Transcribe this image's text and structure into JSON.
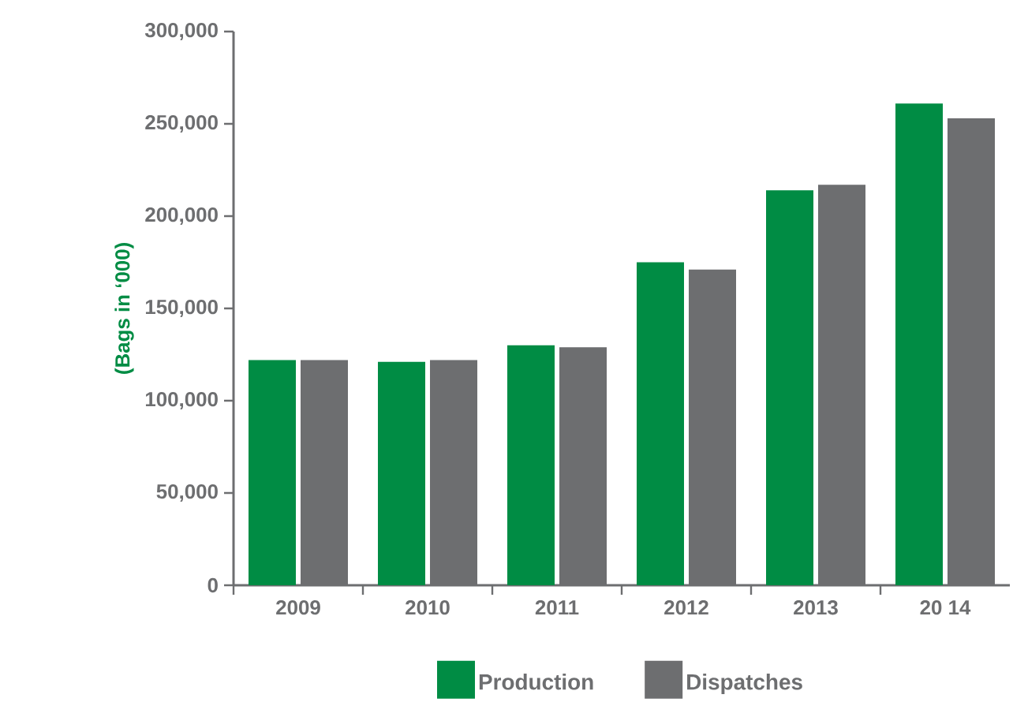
{
  "chart_data": {
    "type": "bar",
    "ylabel": "(Bags in ‘000)",
    "categories": [
      "2009",
      "2010",
      "2011",
      "2012",
      "2013",
      "20 14"
    ],
    "series": [
      {
        "name": "Production",
        "color": "#008c44",
        "values": [
          122000,
          121000,
          130000,
          175000,
          214000,
          261000
        ]
      },
      {
        "name": "Dispatches",
        "color": "#6d6e70",
        "values": [
          122000,
          122000,
          129000,
          171000,
          217000,
          253000
        ]
      }
    ],
    "ylim": [
      0,
      300000
    ],
    "yticks": [
      0,
      {
        "value": 50000,
        "label": "50,000"
      },
      {
        "value": 100000,
        "label": "100,000"
      },
      {
        "value": 150000,
        "label": "150,000"
      },
      {
        "value": 200000,
        "label": "200,000"
      },
      {
        "value": 250000,
        "label": "250,000"
      },
      {
        "value": 300000,
        "label": "300,000"
      }
    ],
    "grid": false,
    "legend": "bottom"
  }
}
